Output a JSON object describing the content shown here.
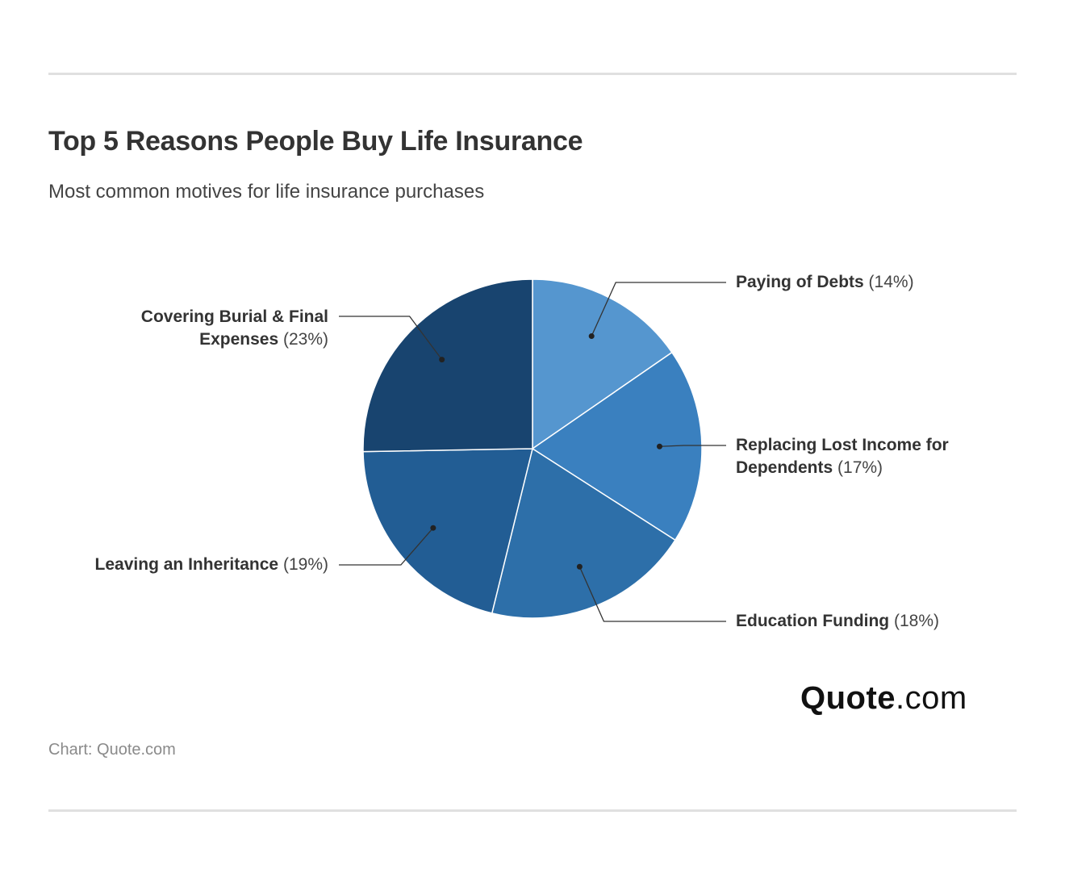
{
  "header": {
    "title": "Top 5 Reasons People Buy Life Insurance",
    "subtitle": "Most common motives for life insurance purchases"
  },
  "chart_data": {
    "type": "pie",
    "title": "Top 5 Reasons People Buy Life Insurance",
    "subtitle": "Most common motives for life insurance purchases",
    "slices": [
      {
        "label": "Paying of Debts",
        "value": 14,
        "pct_text": "(14%)",
        "color": "#5596cf"
      },
      {
        "label": "Replacing Lost Income for Dependents",
        "value": 17,
        "pct_text": "(17%)",
        "color": "#3a80bf"
      },
      {
        "label": "Education Funding",
        "value": 18,
        "pct_text": "(18%)",
        "color": "#2d6fa9"
      },
      {
        "label": "Leaving an Inheritance",
        "value": 19,
        "pct_text": "(19%)",
        "color": "#225d94"
      },
      {
        "label": "Covering Burial & Final Expenses",
        "value": 23,
        "pct_text": "(23%)",
        "color": "#18446f"
      }
    ]
  },
  "labels": {
    "debts": {
      "name": "Paying of Debts",
      "pct": "(14%)"
    },
    "income": {
      "name_line1": "Replacing Lost Income for",
      "name_line2": "Dependents",
      "pct": "(17%)"
    },
    "education": {
      "name": "Education Funding",
      "pct": "(18%)"
    },
    "inheritance": {
      "name": "Leaving an Inheritance",
      "pct": "(19%)"
    },
    "burial": {
      "name_line1": "Covering Burial & Final",
      "name_line2": "Expenses",
      "pct": "(23%)"
    }
  },
  "footer": {
    "logo_brand": "Quote",
    "logo_tld": ".com",
    "source": "Chart: Quote.com"
  }
}
